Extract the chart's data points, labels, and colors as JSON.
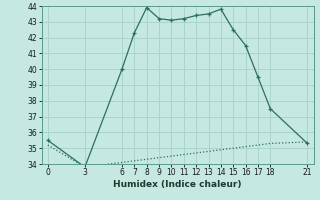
{
  "xlabel": "Humidex (Indice chaleur)",
  "background_color": "#c5e8e0",
  "grid_color": "#aad4cc",
  "line_color": "#2e6e62",
  "x_line1": [
    0,
    3,
    6,
    7,
    8,
    9,
    10,
    11,
    12,
    13,
    14,
    15,
    16,
    17,
    18,
    21
  ],
  "y_line1": [
    35.5,
    33.8,
    40.0,
    42.3,
    43.9,
    43.2,
    43.1,
    43.2,
    43.4,
    43.5,
    43.8,
    42.5,
    41.5,
    39.5,
    37.5,
    35.3
  ],
  "x_line2": [
    0,
    3,
    6,
    7,
    8,
    9,
    10,
    11,
    12,
    13,
    14,
    15,
    16,
    17,
    18,
    21
  ],
  "y_line2": [
    35.2,
    33.8,
    34.1,
    34.2,
    34.3,
    34.4,
    34.5,
    34.6,
    34.7,
    34.8,
    34.9,
    35.0,
    35.1,
    35.2,
    35.3,
    35.4
  ],
  "ylim": [
    34,
    44
  ],
  "xlim": [
    -0.5,
    21.5
  ],
  "yticks": [
    34,
    35,
    36,
    37,
    38,
    39,
    40,
    41,
    42,
    43,
    44
  ],
  "xticks": [
    0,
    3,
    6,
    7,
    8,
    9,
    10,
    11,
    12,
    13,
    14,
    15,
    16,
    17,
    18,
    21
  ],
  "tick_fontsize": 5.5,
  "xlabel_fontsize": 6.5
}
